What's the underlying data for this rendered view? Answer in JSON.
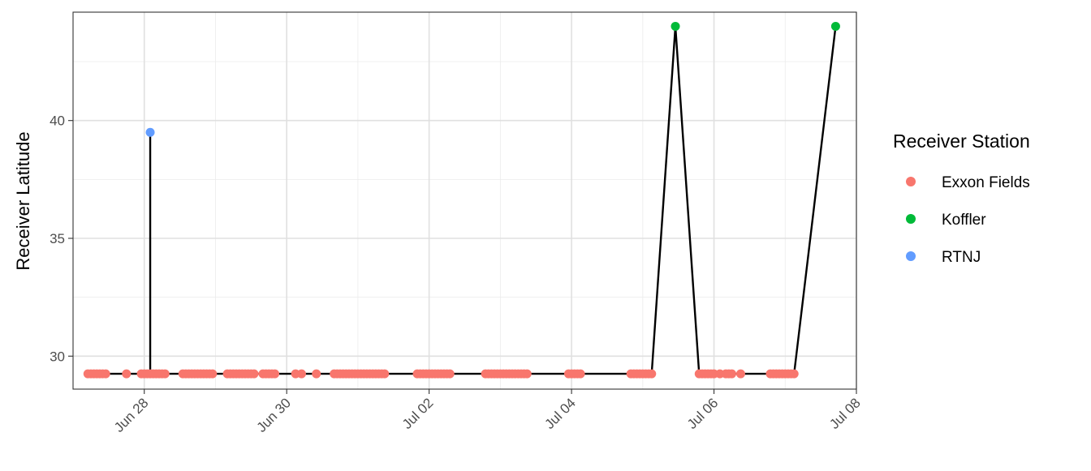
{
  "chart_data": {
    "type": "scatter",
    "title": "",
    "xlabel": "",
    "ylabel": "Receiver Latitude",
    "xlim": [
      "2024-06-27T00:00",
      "2024-07-08T00:00"
    ],
    "ylim": [
      28.6,
      44.6
    ],
    "x_ticks": [
      {
        "value": "2024-06-28T00:00",
        "label": "Jun 28"
      },
      {
        "value": "2024-06-30T00:00",
        "label": "Jun 30"
      },
      {
        "value": "2024-07-02T00:00",
        "label": "Jul 02"
      },
      {
        "value": "2024-07-04T00:00",
        "label": "Jul 04"
      },
      {
        "value": "2024-07-06T00:00",
        "label": "Jul 06"
      },
      {
        "value": "2024-07-08T00:00",
        "label": "Jul 08"
      }
    ],
    "y_ticks": [
      30,
      35,
      40
    ],
    "grid": true,
    "legend": {
      "title": "Receiver Station",
      "position": "right",
      "items": [
        {
          "name": "Exxon Fields",
          "color": "#F8766D"
        },
        {
          "name": "Koffler",
          "color": "#00BA38"
        },
        {
          "name": "RTNJ",
          "color": "#619CFF"
        }
      ]
    },
    "series": [
      {
        "name": "Exxon Fields",
        "color": "#F8766D",
        "y": 29.25,
        "x": [
          "2024-06-27T05:00",
          "2024-06-27T06:00",
          "2024-06-27T07:00",
          "2024-06-27T08:00",
          "2024-06-27T09:00",
          "2024-06-27T10:00",
          "2024-06-27T11:00",
          "2024-06-27T18:00",
          "2024-06-27T23:00",
          "2024-06-28T00:00",
          "2024-06-28T01:00",
          "2024-06-28T02:00",
          "2024-06-28T03:00",
          "2024-06-28T04:00",
          "2024-06-28T05:00",
          "2024-06-28T06:00",
          "2024-06-28T07:00",
          "2024-06-28T13:00",
          "2024-06-28T14:00",
          "2024-06-28T15:00",
          "2024-06-28T16:00",
          "2024-06-28T17:00",
          "2024-06-28T18:00",
          "2024-06-28T19:00",
          "2024-06-28T20:00",
          "2024-06-28T21:00",
          "2024-06-28T22:00",
          "2024-06-28T23:00",
          "2024-06-29T04:00",
          "2024-06-29T05:00",
          "2024-06-29T06:00",
          "2024-06-29T07:00",
          "2024-06-29T08:00",
          "2024-06-29T09:00",
          "2024-06-29T10:00",
          "2024-06-29T11:00",
          "2024-06-29T12:00",
          "2024-06-29T13:00",
          "2024-06-29T16:00",
          "2024-06-29T17:00",
          "2024-06-29T18:00",
          "2024-06-29T19:00",
          "2024-06-29T20:00",
          "2024-06-30T03:00",
          "2024-06-30T05:00",
          "2024-06-30T10:00",
          "2024-06-30T16:00",
          "2024-06-30T17:00",
          "2024-06-30T18:00",
          "2024-06-30T19:00",
          "2024-06-30T20:00",
          "2024-06-30T21:00",
          "2024-06-30T22:00",
          "2024-06-30T23:00",
          "2024-07-01T00:00",
          "2024-07-01T01:00",
          "2024-07-01T02:00",
          "2024-07-01T03:00",
          "2024-07-01T04:00",
          "2024-07-01T05:00",
          "2024-07-01T06:00",
          "2024-07-01T07:00",
          "2024-07-01T08:00",
          "2024-07-01T09:00",
          "2024-07-01T20:00",
          "2024-07-01T21:00",
          "2024-07-01T22:00",
          "2024-07-01T23:00",
          "2024-07-02T00:00",
          "2024-07-02T01:00",
          "2024-07-02T02:00",
          "2024-07-02T03:00",
          "2024-07-02T04:00",
          "2024-07-02T05:00",
          "2024-07-02T06:00",
          "2024-07-02T07:00",
          "2024-07-02T19:00",
          "2024-07-02T20:00",
          "2024-07-02T21:00",
          "2024-07-02T22:00",
          "2024-07-02T23:00",
          "2024-07-03T00:00",
          "2024-07-03T01:00",
          "2024-07-03T02:00",
          "2024-07-03T03:00",
          "2024-07-03T04:00",
          "2024-07-03T05:00",
          "2024-07-03T06:00",
          "2024-07-03T07:00",
          "2024-07-03T08:00",
          "2024-07-03T09:00",
          "2024-07-03T23:00",
          "2024-07-04T00:00",
          "2024-07-04T01:00",
          "2024-07-04T02:00",
          "2024-07-04T03:00",
          "2024-07-04T20:00",
          "2024-07-04T21:00",
          "2024-07-04T22:00",
          "2024-07-04T23:00",
          "2024-07-05T00:00",
          "2024-07-05T01:00",
          "2024-07-05T02:00",
          "2024-07-05T03:00",
          "2024-07-05T19:00",
          "2024-07-05T20:00",
          "2024-07-05T21:00",
          "2024-07-05T22:00",
          "2024-07-05T23:00",
          "2024-07-06T00:00",
          "2024-07-06T02:00",
          "2024-07-06T04:00",
          "2024-07-06T05:00",
          "2024-07-06T06:00",
          "2024-07-06T09:00",
          "2024-07-06T19:00",
          "2024-07-06T20:00",
          "2024-07-06T21:00",
          "2024-07-06T22:00",
          "2024-07-06T23:00",
          "2024-07-07T00:00",
          "2024-07-07T01:00",
          "2024-07-07T02:00",
          "2024-07-07T03:00"
        ]
      },
      {
        "name": "Koffler",
        "color": "#00BA38",
        "points": [
          {
            "x": "2024-07-05T11:00",
            "y": 44.0
          },
          {
            "x": "2024-07-07T17:00",
            "y": 44.0
          }
        ]
      },
      {
        "name": "RTNJ",
        "color": "#619CFF",
        "points": [
          {
            "x": "2024-06-28T02:00",
            "y": 39.5
          }
        ]
      }
    ],
    "path": [
      {
        "x": "2024-06-27T05:00",
        "y": 29.25
      },
      {
        "x": "2024-06-28T02:00",
        "y": 29.25
      },
      {
        "x": "2024-06-28T02:00",
        "y": 39.5
      },
      {
        "x": "2024-06-28T02:00",
        "y": 29.25
      },
      {
        "x": "2024-07-05T03:00",
        "y": 29.25
      },
      {
        "x": "2024-07-05T11:00",
        "y": 44.0
      },
      {
        "x": "2024-07-05T19:00",
        "y": 29.25
      },
      {
        "x": "2024-07-07T03:00",
        "y": 29.25
      },
      {
        "x": "2024-07-07T17:00",
        "y": 44.0
      }
    ]
  }
}
